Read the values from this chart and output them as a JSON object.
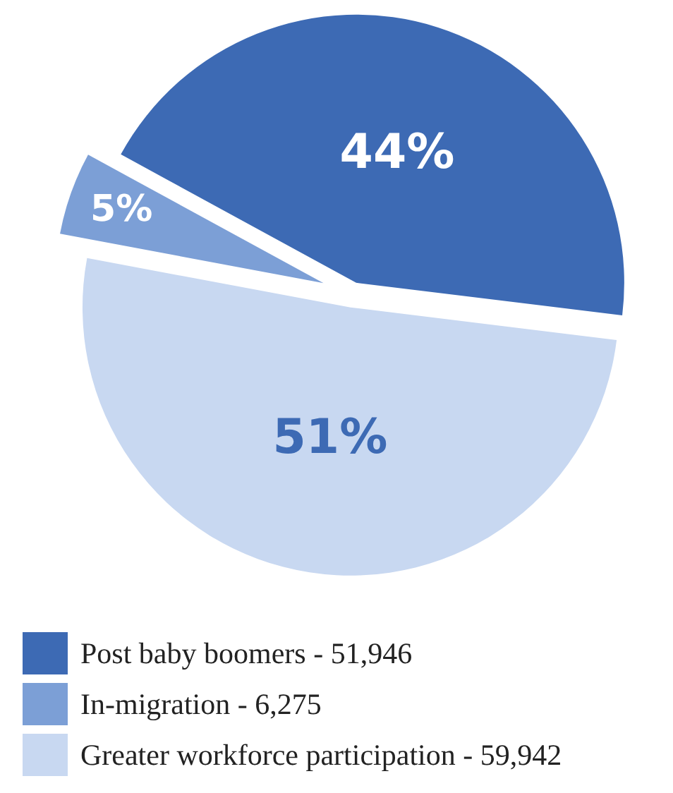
{
  "chart_data": {
    "type": "pie",
    "categories": [
      "Post baby boomers - 51,946",
      "In-migration - 6,275",
      "Greater workforce participation - 59,942"
    ],
    "values": [
      44,
      5,
      51
    ],
    "value_labels": [
      "44%",
      "5%",
      "51%"
    ],
    "colors": [
      "#3d6ab4",
      "#7c9fd6",
      "#c8d8f1"
    ],
    "legend": "bottom"
  }
}
